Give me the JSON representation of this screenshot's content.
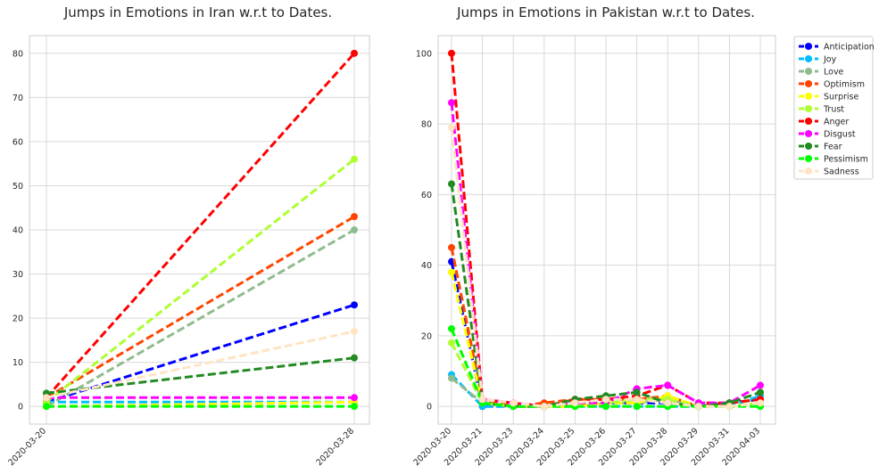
{
  "chart_data": [
    {
      "type": "line",
      "title": "Jumps in Emotions in Iran w.r.t to Dates.",
      "xlabel": "",
      "ylabel": "",
      "x": [
        "2020-03-20",
        "2020-03-28"
      ],
      "ylim": [
        -4,
        84
      ],
      "yticks": [
        0,
        10,
        20,
        30,
        40,
        50,
        60,
        70,
        80
      ],
      "grid": true,
      "series": [
        {
          "name": "Anticipation",
          "color": "#0000ff",
          "values": [
            1,
            23
          ]
        },
        {
          "name": "Joy",
          "color": "#00bfff",
          "values": [
            1,
            1
          ]
        },
        {
          "name": "Love",
          "color": "#8fbc8f",
          "values": [
            0,
            40
          ]
        },
        {
          "name": "Optimism",
          "color": "#ff4500",
          "values": [
            2,
            43
          ]
        },
        {
          "name": "Surprise",
          "color": "#ffff00",
          "values": [
            0,
            1
          ]
        },
        {
          "name": "Trust",
          "color": "#adff2f",
          "values": [
            1,
            56
          ]
        },
        {
          "name": "Anger",
          "color": "#ff0000",
          "values": [
            2,
            80
          ]
        },
        {
          "name": "Disgust",
          "color": "#ff00ff",
          "values": [
            2,
            2
          ]
        },
        {
          "name": "Fear",
          "color": "#228b22",
          "values": [
            3,
            11
          ]
        },
        {
          "name": "Pessimism",
          "color": "#00ff00",
          "values": [
            0,
            0
          ]
        },
        {
          "name": "Sadness",
          "color": "#ffe4c4",
          "values": [
            2,
            17
          ]
        }
      ]
    },
    {
      "type": "line",
      "title": "Jumps in Emotions in Pakistan w.r.t to Dates.",
      "xlabel": "",
      "ylabel": "",
      "x": [
        "2020-03-20",
        "2020-03-21",
        "2020-03-23",
        "2020-03-24",
        "2020-03-25",
        "2020-03-26",
        "2020-03-27",
        "2020-03-28",
        "2020-03-29",
        "2020-03-31",
        "2020-04-03"
      ],
      "ylim": [
        -5,
        105
      ],
      "yticks": [
        0,
        20,
        40,
        60,
        80,
        100
      ],
      "grid": true,
      "legend": "upper-right-outside",
      "series": [
        {
          "name": "Anticipation",
          "color": "#0000ff",
          "values": [
            41,
            0,
            0,
            0,
            1,
            1,
            1,
            1,
            0,
            1,
            2
          ]
        },
        {
          "name": "Joy",
          "color": "#00bfff",
          "values": [
            9,
            0,
            0,
            0,
            0,
            0,
            0,
            0,
            0,
            0,
            3
          ]
        },
        {
          "name": "Love",
          "color": "#8fbc8f",
          "values": [
            8,
            1,
            0,
            0,
            0,
            1,
            1,
            2,
            0,
            1,
            2
          ]
        },
        {
          "name": "Optimism",
          "color": "#ff4500",
          "values": [
            45,
            2,
            0,
            1,
            2,
            2,
            2,
            3,
            0,
            1,
            2
          ]
        },
        {
          "name": "Surprise",
          "color": "#ffff00",
          "values": [
            38,
            1,
            0,
            0,
            0,
            1,
            1,
            3,
            0,
            0,
            1
          ]
        },
        {
          "name": "Trust",
          "color": "#adff2f",
          "values": [
            18,
            1,
            0,
            0,
            1,
            1,
            2,
            2,
            0,
            0,
            1
          ]
        },
        {
          "name": "Anger",
          "color": "#ff0000",
          "values": [
            100,
            2,
            1,
            0,
            2,
            2,
            3,
            6,
            1,
            1,
            2
          ]
        },
        {
          "name": "Disgust",
          "color": "#ff00ff",
          "values": [
            86,
            2,
            1,
            0,
            1,
            1,
            5,
            6,
            1,
            1,
            6
          ]
        },
        {
          "name": "Fear",
          "color": "#228b22",
          "values": [
            63,
            1,
            0,
            0,
            2,
            3,
            4,
            1,
            0,
            1,
            4
          ]
        },
        {
          "name": "Pessimism",
          "color": "#00ff00",
          "values": [
            22,
            1,
            0,
            0,
            0,
            0,
            0,
            0,
            0,
            0,
            0
          ]
        },
        {
          "name": "Sadness",
          "color": "#ffe4c4",
          "values": [
            79,
            2,
            1,
            0,
            1,
            2,
            2,
            1,
            0,
            0,
            1
          ]
        }
      ]
    }
  ]
}
